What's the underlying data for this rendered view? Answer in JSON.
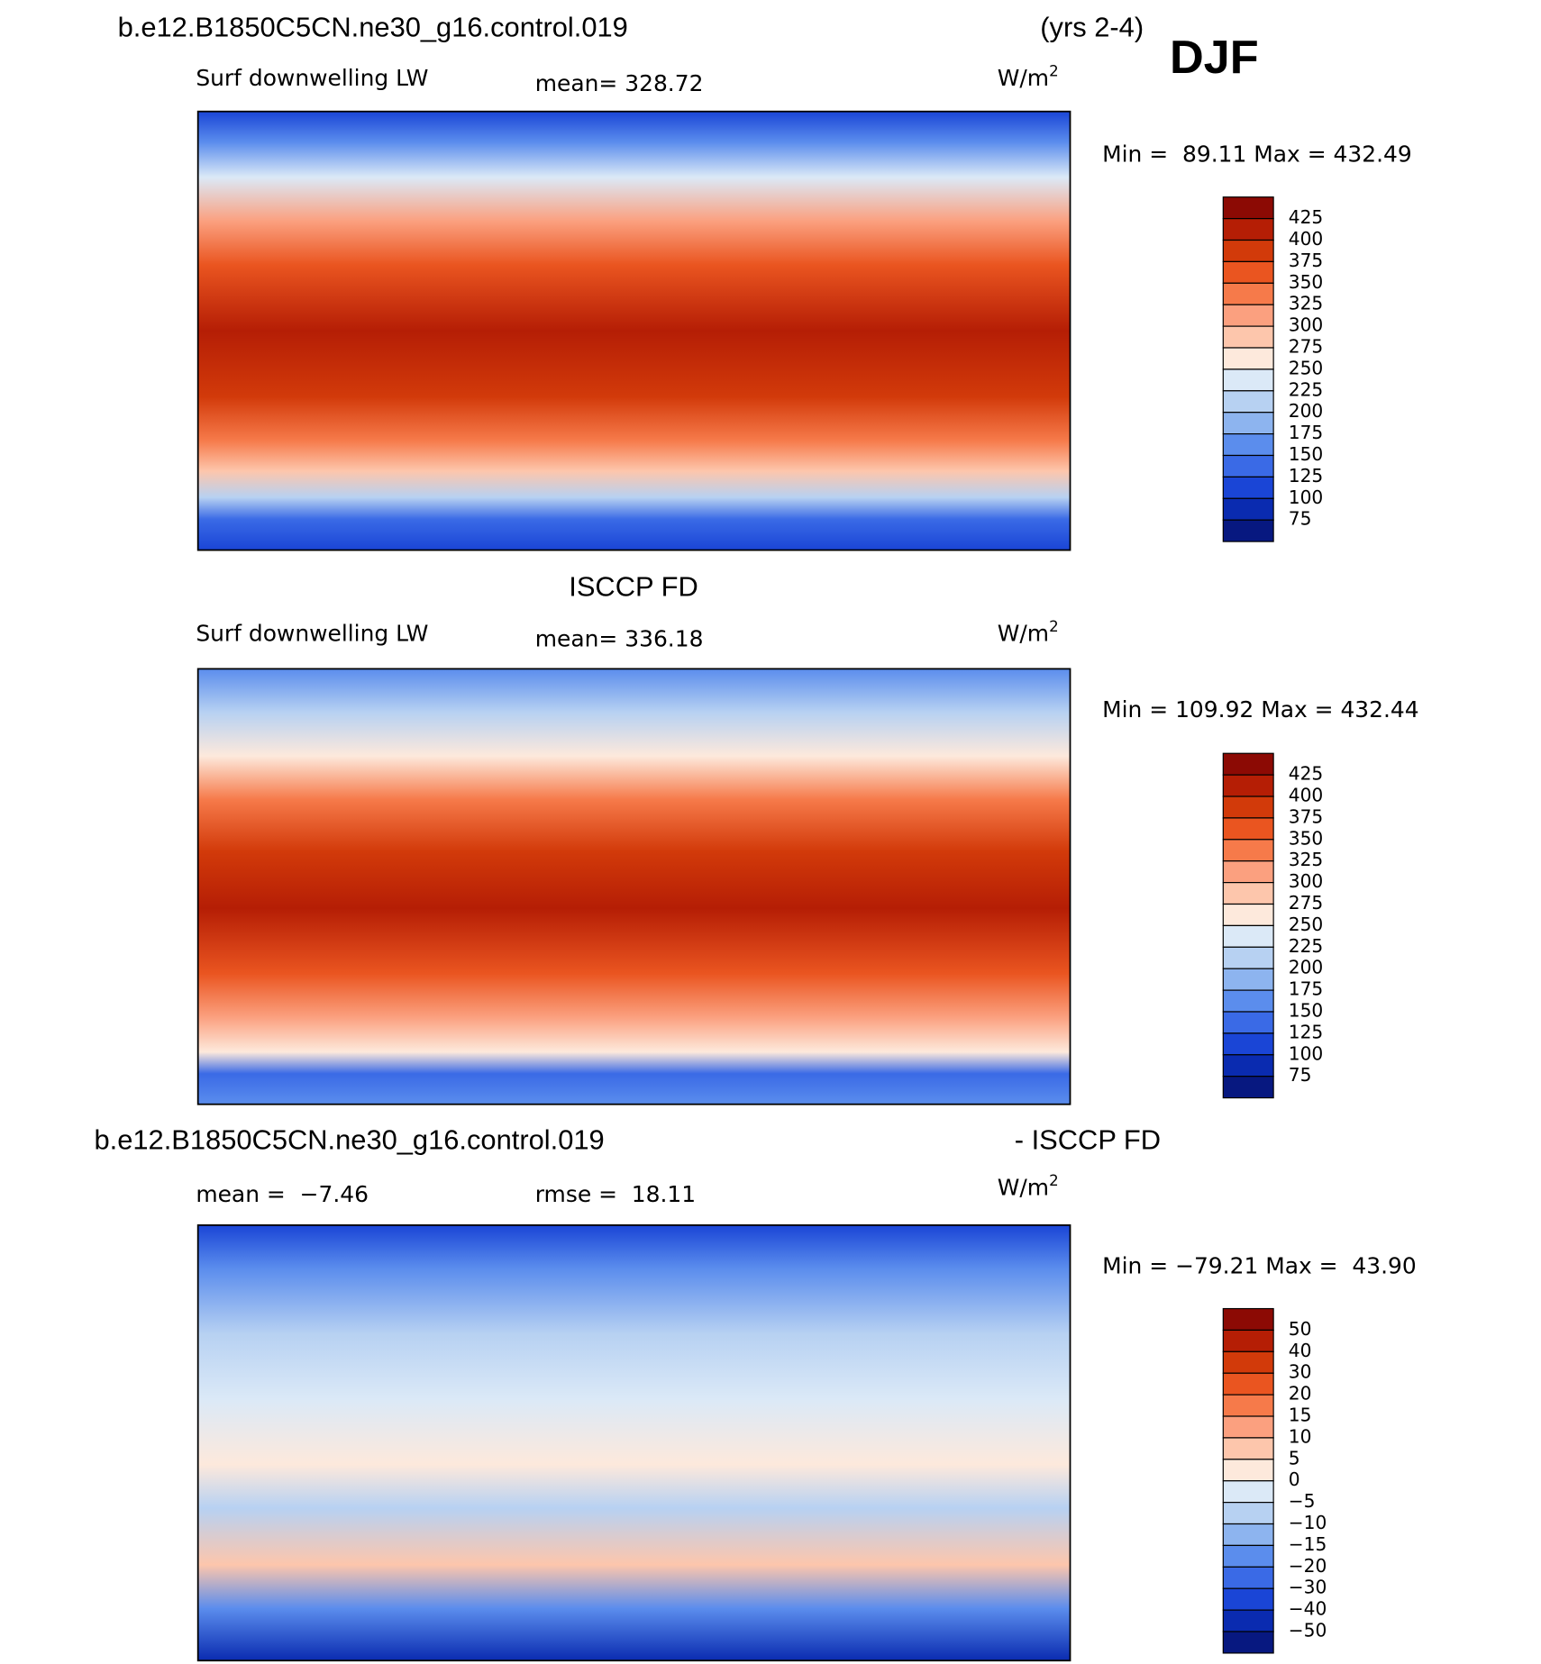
{
  "header": {
    "case": "b.e12.B1850C5CN.ne30_g16.control.019",
    "period": "(yrs 2-4)",
    "season": "DJF"
  },
  "colorbar_colors": [
    "#8c0a04",
    "#b51e05",
    "#d23a0a",
    "#ea5520",
    "#f67a4a",
    "#fba07f",
    "#fdc6ac",
    "#fde9dc",
    "#dbe9f7",
    "#b7d1f2",
    "#8db4ef",
    "#5b8ded",
    "#3a6ae6",
    "#1a45d6",
    "#0a2bb0",
    "#071880"
  ],
  "panels": [
    {
      "variable": "Surf downwelling LW",
      "stat": "mean= 328.72",
      "units": "W/m",
      "units_power": "2",
      "minmax": "Min =  89.11 Max = 432.49",
      "colorbar_labels": [
        "425",
        "400",
        "375",
        "350",
        "325",
        "300",
        "275",
        "250",
        "225",
        "200",
        "175",
        "150",
        "125",
        "100",
        "75"
      ]
    },
    {
      "title": "ISCCP FD",
      "variable": "Surf downwelling LW",
      "stat": "mean= 336.18",
      "units": "W/m",
      "units_power": "2",
      "minmax": "Min = 109.92 Max = 432.44",
      "colorbar_labels": [
        "425",
        "400",
        "375",
        "350",
        "325",
        "300",
        "275",
        "250",
        "225",
        "200",
        "175",
        "150",
        "125",
        "100",
        "75"
      ]
    },
    {
      "title_left": "b.e12.B1850C5CN.ne30_g16.control.019",
      "title_right": "- ISCCP FD",
      "stat": "mean =  −7.46",
      "stat2": "rmse =  18.11",
      "units": "W/m",
      "units_power": "2",
      "minmax": "Min = −79.21 Max =  43.90",
      "colorbar_labels": [
        "50",
        "40",
        "30",
        "20",
        "15",
        "10",
        "5",
        "0",
        "−5",
        "−10",
        "−15",
        "−20",
        "−30",
        "−40",
        "−50"
      ]
    }
  ]
}
